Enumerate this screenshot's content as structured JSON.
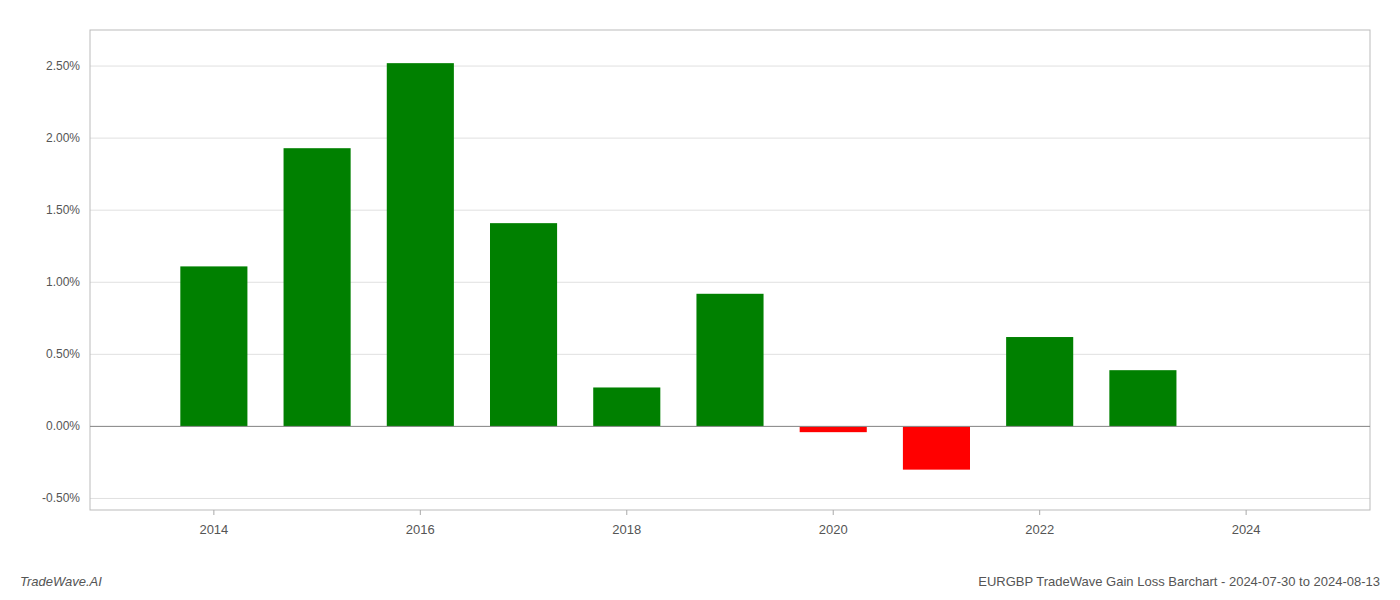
{
  "chart_data": {
    "type": "bar",
    "title": "EURGBP TradeWave Gain Loss Barchart - 2024-07-30 to 2024-08-13",
    "annotations": [
      "TradeWave.AI"
    ],
    "x": [
      2014,
      2015,
      2016,
      2017,
      2018,
      2019,
      2020,
      2021,
      2022,
      2023
    ],
    "values": [
      0.0111,
      0.0193,
      0.0252,
      0.0141,
      0.0027,
      0.0092,
      -0.0004,
      -0.003,
      0.0062,
      0.0039
    ],
    "colors": [
      "#008000",
      "#008000",
      "#008000",
      "#008000",
      "#008000",
      "#008000",
      "#ff0000",
      "#ff0000",
      "#008000",
      "#008000"
    ],
    "xlim": [
      2012.8,
      2025.2
    ],
    "xticks": [
      2014,
      2016,
      2018,
      2020,
      2022,
      2024
    ],
    "ylim": [
      -0.0058,
      0.0275
    ],
    "yticks": [
      {
        "value": -0.005,
        "label": "-0.50%"
      },
      {
        "value": 0.0,
        "label": "0.00%"
      },
      {
        "value": 0.005,
        "label": "0.50%"
      },
      {
        "value": 0.01,
        "label": "1.00%"
      },
      {
        "value": 0.015,
        "label": "1.50%"
      },
      {
        "value": 0.02,
        "label": "2.00%"
      },
      {
        "value": 0.025,
        "label": "2.50%"
      }
    ],
    "grid": true
  }
}
